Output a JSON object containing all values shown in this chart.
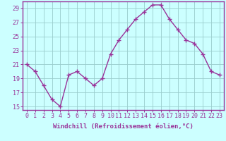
{
  "x": [
    0,
    1,
    2,
    3,
    4,
    5,
    6,
    7,
    8,
    9,
    10,
    11,
    12,
    13,
    14,
    15,
    16,
    17,
    18,
    19,
    20,
    21,
    22,
    23
  ],
  "y": [
    21.0,
    20.0,
    18.0,
    16.0,
    15.0,
    19.5,
    20.0,
    19.0,
    18.0,
    19.0,
    22.5,
    24.5,
    26.0,
    27.5,
    28.5,
    29.5,
    29.5,
    27.5,
    26.0,
    24.5,
    24.0,
    22.5,
    20.0,
    19.5
  ],
  "line_color": "#993399",
  "marker": "+",
  "marker_size": 4,
  "bg_color": "#ccffff",
  "grid_color": "#99cccc",
  "xlabel": "Windchill (Refroidissement éolien,°C)",
  "ylim": [
    14.5,
    30.0
  ],
  "yticks": [
    15,
    17,
    19,
    21,
    23,
    25,
    27,
    29
  ],
  "xlim": [
    -0.5,
    23.5
  ],
  "xticks": [
    0,
    1,
    2,
    3,
    4,
    5,
    6,
    7,
    8,
    9,
    10,
    11,
    12,
    13,
    14,
    15,
    16,
    17,
    18,
    19,
    20,
    21,
    22,
    23
  ],
  "title_color": "#993399",
  "label_fontsize": 6.5,
  "tick_fontsize": 6.0,
  "line_width": 1.0
}
